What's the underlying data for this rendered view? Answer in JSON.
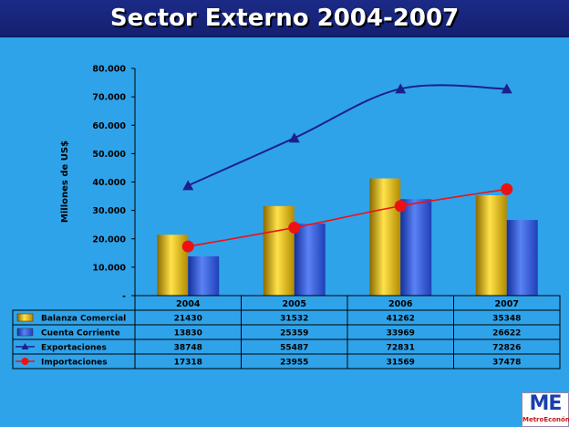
{
  "title": "Sector Externo 2004-2007",
  "logo": {
    "mark": "ME",
    "text": "MetroEconómica"
  },
  "chart_data": {
    "type": "bar",
    "ylabel": "Millones de US$",
    "ylim": [
      0,
      80000
    ],
    "yticks": [
      "-",
      "10.000",
      "20.000",
      "30.000",
      "40.000",
      "50.000",
      "60.000",
      "70.000",
      "80.000"
    ],
    "grid": false,
    "categories": [
      "2004",
      "2005",
      "2006",
      "2007"
    ],
    "series": [
      {
        "name": "Balanza Comercial",
        "kind": "bar",
        "color": "#e8b800",
        "values": [
          21430,
          31532,
          41262,
          35348
        ]
      },
      {
        "name": "Cuenta Corriente",
        "kind": "bar",
        "color": "#2f55d6",
        "values": [
          13830,
          25359,
          33969,
          26622
        ]
      },
      {
        "name": "Exportaciones",
        "kind": "line",
        "marker": "triangle",
        "color": "#1b1f8f",
        "values": [
          38748,
          55487,
          72831,
          72826
        ]
      },
      {
        "name": "Importaciones",
        "kind": "line",
        "marker": "circle",
        "color": "#ee1111",
        "values": [
          17318,
          23955,
          31569,
          37478
        ]
      }
    ],
    "data_table": true
  }
}
